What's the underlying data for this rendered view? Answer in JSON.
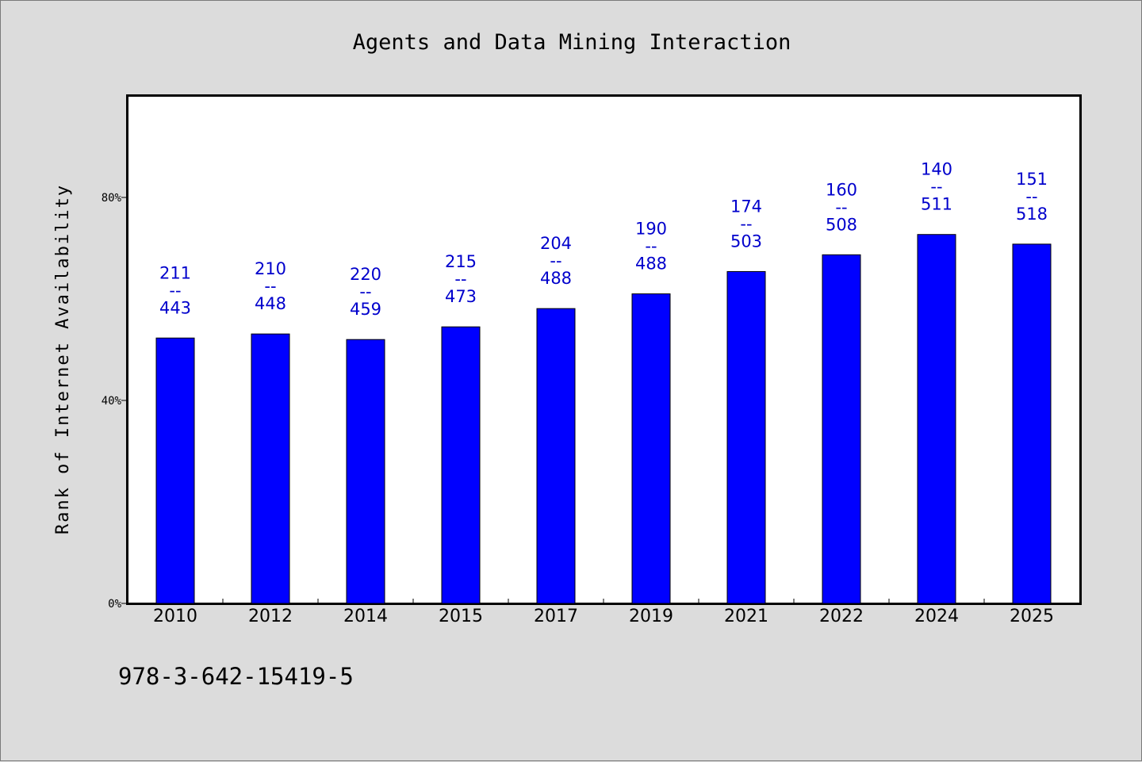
{
  "chart_data": {
    "type": "bar",
    "title": "Agents and Data Mining Interaction",
    "ylabel": "Rank of Internet Availability",
    "xlabel": "",
    "categories": [
      "2010",
      "2012",
      "2014",
      "2015",
      "2017",
      "2019",
      "2021",
      "2022",
      "2024",
      "2025"
    ],
    "values": [
      52.3,
      53.1,
      52.0,
      54.5,
      58.1,
      61.0,
      65.4,
      68.7,
      72.7,
      70.8
    ],
    "ylim": [
      0,
      100
    ],
    "yticks": [
      "0%",
      "40%",
      "80%"
    ],
    "ytick_values": [
      0,
      40,
      80
    ],
    "data_labels": [
      [
        "211",
        "--",
        "443"
      ],
      [
        "210",
        "--",
        "448"
      ],
      [
        "220",
        "--",
        "459"
      ],
      [
        "215",
        "--",
        "473"
      ],
      [
        "204",
        "--",
        "488"
      ],
      [
        "190",
        "--",
        "488"
      ],
      [
        "174",
        "--",
        "503"
      ],
      [
        "160",
        "--",
        "508"
      ],
      [
        "140",
        "--",
        "511"
      ],
      [
        "151",
        "--",
        "518"
      ]
    ],
    "grid": false,
    "legend": "none",
    "colors": {
      "bar": "#0000ff",
      "label": "#0000cc",
      "plot_bg": "#ffffff",
      "figure_bg": "#dcdcdc"
    }
  },
  "footer": {
    "isbn": "978-3-642-15419-5"
  }
}
